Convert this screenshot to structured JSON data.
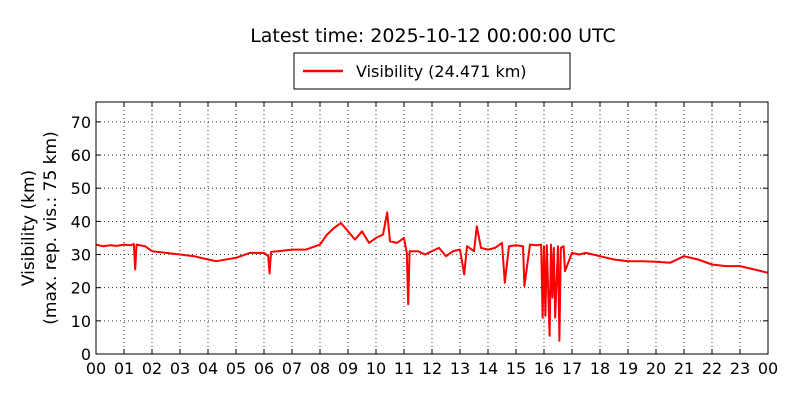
{
  "chart_data": {
    "type": "line",
    "title": "Latest time: 2025-10-12 00:00:00 UTC",
    "ylabel_line1": "Visibility (km)",
    "ylabel_line2": "(max. rep. vis.: 75 km)",
    "xlabel": "",
    "xlim": [
      0,
      24
    ],
    "ylim": [
      0,
      76
    ],
    "x_ticks": [
      "00",
      "01",
      "02",
      "03",
      "04",
      "05",
      "06",
      "07",
      "08",
      "09",
      "10",
      "11",
      "12",
      "13",
      "14",
      "15",
      "16",
      "17",
      "18",
      "19",
      "20",
      "21",
      "22",
      "23",
      "00"
    ],
    "y_ticks": [
      0,
      10,
      20,
      30,
      40,
      50,
      60,
      70
    ],
    "grid": true,
    "legend_position": "top-center",
    "series": [
      {
        "name": "Visibility (24.471 km)",
        "color": "#ff0000",
        "x": [
          0,
          0.25,
          0.5,
          0.75,
          1.0,
          1.25,
          1.35,
          1.4,
          1.45,
          1.75,
          2.0,
          2.5,
          3.0,
          3.5,
          4.0,
          4.3,
          4.5,
          5.0,
          5.5,
          6.0,
          6.15,
          6.2,
          6.25,
          6.5,
          7.0,
          7.5,
          8.0,
          8.25,
          8.5,
          8.75,
          9.0,
          9.25,
          9.5,
          9.75,
          10.0,
          10.25,
          10.4,
          10.5,
          10.75,
          11.0,
          11.1,
          11.15,
          11.2,
          11.5,
          11.75,
          12.0,
          12.25,
          12.5,
          12.75,
          13.0,
          13.15,
          13.25,
          13.5,
          13.6,
          13.75,
          14.0,
          14.25,
          14.5,
          14.6,
          14.75,
          15.0,
          15.25,
          15.3,
          15.5,
          15.75,
          15.9,
          15.95,
          16.0,
          16.05,
          16.1,
          16.2,
          16.25,
          16.3,
          16.35,
          16.4,
          16.5,
          16.55,
          16.6,
          16.7,
          16.75,
          17.0,
          17.25,
          17.5,
          18.0,
          18.5,
          19.0,
          19.5,
          20.0,
          20.5,
          21.0,
          21.5,
          22.0,
          22.5,
          23.0,
          23.5,
          24.0
        ],
        "y": [
          33,
          32.5,
          32.8,
          32.6,
          33,
          32.8,
          33.2,
          25.5,
          33,
          32.5,
          31,
          30.5,
          30,
          29.5,
          28.5,
          28,
          28.3,
          29,
          30.5,
          30.5,
          29.5,
          24.3,
          30.8,
          31,
          31.5,
          31.5,
          33,
          36,
          38,
          39.5,
          37,
          34.5,
          37,
          33.5,
          35,
          36,
          42.7,
          34,
          33.5,
          35,
          30.5,
          15,
          31,
          31,
          30,
          31,
          32,
          29.5,
          31,
          31.5,
          24,
          32.5,
          31,
          38.5,
          32,
          31.5,
          32,
          33.5,
          21.5,
          32.5,
          32.8,
          32.5,
          20.5,
          33,
          32.8,
          33,
          11,
          32.5,
          11.5,
          32.8,
          5.5,
          33,
          17,
          32,
          11,
          32.5,
          4,
          32,
          32.5,
          25,
          30.5,
          30,
          30.5,
          29.5,
          28.5,
          28,
          28,
          27.8,
          27.5,
          29.5,
          28.5,
          27,
          26.5,
          26.5,
          25.5,
          24.5
        ]
      }
    ]
  }
}
